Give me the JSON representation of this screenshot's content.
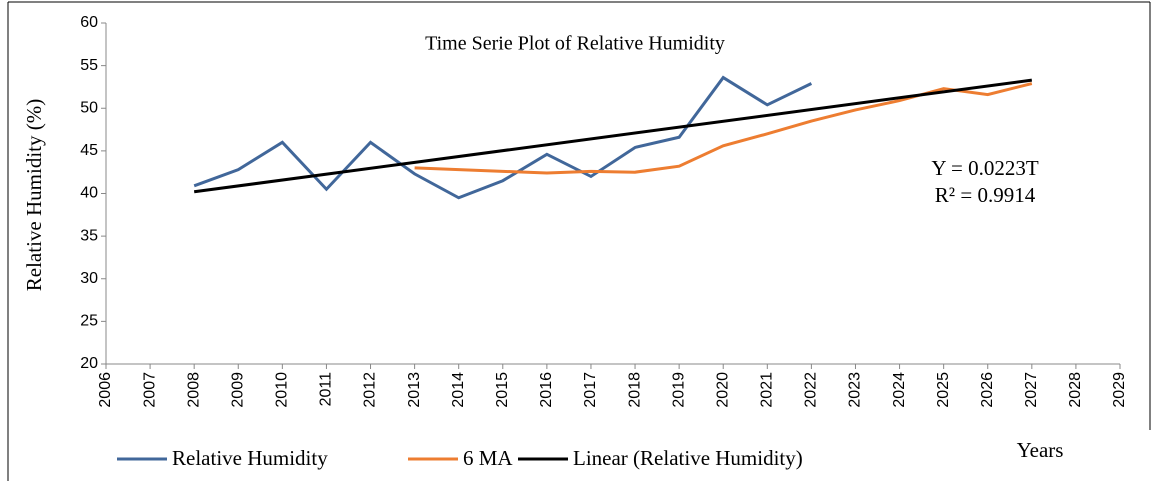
{
  "chart_data": {
    "type": "line",
    "title": "Time Serie Plot of Relative Humidity",
    "y_label": "Relative Humidity (%)",
    "x_label": "Years",
    "x": [
      2008,
      2009,
      2010,
      2011,
      2012,
      2013,
      2014,
      2015,
      2016,
      2017,
      2018,
      2019,
      2020,
      2021,
      2022,
      2023,
      2024,
      2025,
      2026,
      2027
    ],
    "series": [
      {
        "name": "Relative Humidity",
        "color": "#41679a",
        "values": [
          40.9,
          42.8,
          46.0,
          40.5,
          46.0,
          42.3,
          39.5,
          41.5,
          44.6,
          42.0,
          45.4,
          46.6,
          53.6,
          50.4,
          52.9,
          null,
          null,
          null,
          null,
          null
        ]
      },
      {
        "name": "6 MA",
        "color": "#ed7d31",
        "values": [
          null,
          null,
          null,
          null,
          null,
          43.0,
          42.8,
          42.6,
          42.4,
          42.6,
          42.5,
          43.2,
          45.6,
          47.0,
          48.5,
          49.8,
          50.9,
          52.3,
          51.6,
          52.9
        ]
      },
      {
        "name": "Linear (Relative Humidity)",
        "color": "#000000",
        "x": [
          2008,
          2027
        ],
        "values": [
          40.2,
          53.3
        ]
      }
    ],
    "xlim": [
      2006,
      2029
    ],
    "xticks": [
      2006,
      2007,
      2008,
      2009,
      2010,
      2011,
      2012,
      2013,
      2014,
      2015,
      2016,
      2017,
      2018,
      2019,
      2020,
      2021,
      2022,
      2023,
      2024,
      2025,
      2026,
      2027,
      2028,
      2029
    ],
    "ylim": [
      20,
      60
    ],
    "yticks": [
      20,
      25,
      30,
      35,
      40,
      45,
      50,
      55,
      60
    ],
    "annotations": [
      "Y = 0.0223T",
      "R² = 0.9914"
    ]
  }
}
